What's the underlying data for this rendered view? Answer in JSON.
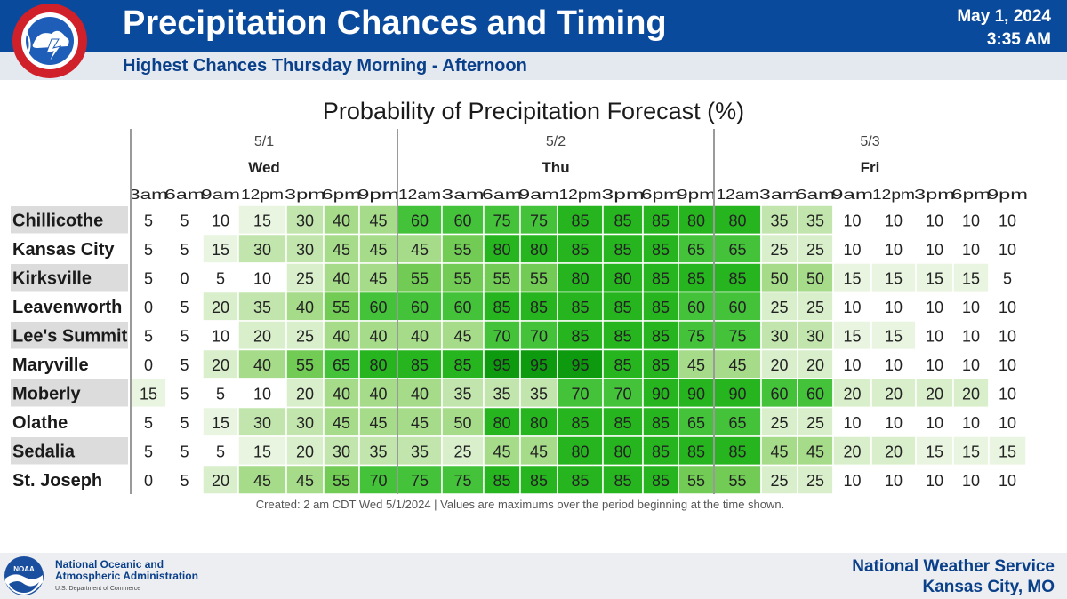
{
  "header": {
    "title": "Precipitation Chances and Timing",
    "subtitle": "Highest Chances Thursday Morning - Afternoon",
    "date": "May 1, 2024",
    "time": "3:35 AM",
    "nws_logo_text": "NATIONAL WEATHER SERVICE"
  },
  "chart_data": {
    "type": "table",
    "title": "Probability of Precipitation Forecast (%)",
    "days": [
      {
        "date": "5/1",
        "day": "Wed",
        "columns": 7
      },
      {
        "date": "5/2",
        "day": "Thu",
        "columns": 8
      },
      {
        "date": "5/3",
        "day": "Fri",
        "columns": 8
      }
    ],
    "times": [
      "3am",
      "6am",
      "9am",
      "12pm",
      "3pm",
      "6pm",
      "9pm",
      "12am",
      "3am",
      "6am",
      "9am",
      "12pm",
      "3pm",
      "6pm",
      "9pm",
      "12am",
      "3am",
      "6am",
      "9am",
      "12pm",
      "3pm",
      "6pm",
      "9pm"
    ],
    "rows": [
      {
        "location": "Chillicothe",
        "values": [
          5,
          5,
          10,
          15,
          30,
          40,
          45,
          60,
          60,
          75,
          75,
          85,
          85,
          85,
          80,
          80,
          35,
          35,
          10,
          10,
          10,
          10,
          10
        ]
      },
      {
        "location": "Kansas City",
        "values": [
          5,
          5,
          15,
          30,
          30,
          45,
          45,
          45,
          55,
          80,
          80,
          85,
          85,
          85,
          65,
          65,
          25,
          25,
          10,
          10,
          10,
          10,
          10
        ]
      },
      {
        "location": "Kirksville",
        "values": [
          5,
          0,
          5,
          10,
          25,
          40,
          45,
          55,
          55,
          55,
          55,
          80,
          80,
          85,
          85,
          85,
          50,
          50,
          15,
          15,
          15,
          15,
          5
        ]
      },
      {
        "location": "Leavenworth",
        "values": [
          0,
          5,
          20,
          35,
          40,
          55,
          60,
          60,
          60,
          85,
          85,
          85,
          85,
          85,
          60,
          60,
          25,
          25,
          10,
          10,
          10,
          10,
          10
        ]
      },
      {
        "location": "Lee's Summit",
        "values": [
          5,
          5,
          10,
          20,
          25,
          40,
          40,
          40,
          45,
          70,
          70,
          85,
          85,
          85,
          75,
          75,
          30,
          30,
          15,
          15,
          10,
          10,
          10
        ]
      },
      {
        "location": "Maryville",
        "values": [
          0,
          5,
          20,
          40,
          55,
          65,
          80,
          85,
          85,
          95,
          95,
          95,
          85,
          85,
          45,
          45,
          20,
          20,
          10,
          10,
          10,
          10,
          10
        ]
      },
      {
        "location": "Moberly",
        "values": [
          15,
          5,
          5,
          10,
          20,
          40,
          40,
          40,
          35,
          35,
          35,
          70,
          70,
          90,
          90,
          90,
          60,
          60,
          20,
          20,
          20,
          20,
          10
        ]
      },
      {
        "location": "Olathe",
        "values": [
          5,
          5,
          15,
          30,
          30,
          45,
          45,
          45,
          50,
          80,
          80,
          85,
          85,
          85,
          65,
          65,
          25,
          25,
          10,
          10,
          10,
          10,
          10
        ]
      },
      {
        "location": "Sedalia",
        "values": [
          5,
          5,
          5,
          15,
          20,
          30,
          35,
          35,
          25,
          45,
          45,
          80,
          80,
          85,
          85,
          85,
          45,
          45,
          20,
          20,
          15,
          15,
          15
        ]
      },
      {
        "location": "St. Joseph",
        "values": [
          0,
          5,
          20,
          45,
          45,
          55,
          70,
          75,
          75,
          85,
          85,
          85,
          85,
          85,
          55,
          55,
          25,
          25,
          10,
          10,
          10,
          10,
          10
        ]
      }
    ],
    "color_scale": [
      {
        "min": 0,
        "color": "#ffffff"
      },
      {
        "min": 15,
        "color": "#e9f5e1"
      },
      {
        "min": 20,
        "color": "#d9efcc"
      },
      {
        "min": 30,
        "color": "#c2e5ae"
      },
      {
        "min": 40,
        "color": "#a6db8a"
      },
      {
        "min": 55,
        "color": "#72cb54"
      },
      {
        "min": 60,
        "color": "#44c23a"
      },
      {
        "min": 80,
        "color": "#27b51f"
      },
      {
        "min": 95,
        "color": "#0e9a0e"
      }
    ],
    "footnote": "Created: 2 am CDT Wed 5/1/2024  |  Values are maximums over the period beginning at the time shown."
  },
  "footer": {
    "agency_line1": "National Oceanic and",
    "agency_line2": "Atmospheric Administration",
    "agency_sub": "U.S. Department of Commerce",
    "office_line1": "National Weather Service",
    "office_line2": "Kansas City, MO",
    "noaa_logo_text": "NOAA"
  }
}
